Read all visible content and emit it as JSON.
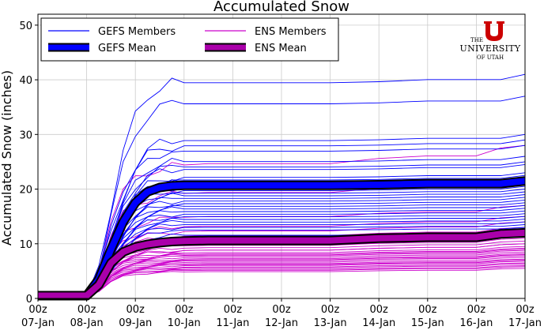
{
  "chart_data": {
    "type": "line",
    "title": "Accumulated Snow",
    "xlabel": "",
    "ylabel": "Accumulated Snow (inches)",
    "ylim": [
      0,
      52
    ],
    "yticks": [
      0,
      10,
      20,
      30,
      40,
      50
    ],
    "xlim": [
      0,
      240
    ],
    "xticks": [
      {
        "h": 0,
        "top": "00z",
        "bottom": "07-Jan"
      },
      {
        "h": 24,
        "top": "00z",
        "bottom": "08-Jan"
      },
      {
        "h": 48,
        "top": "00z",
        "bottom": "09-Jan"
      },
      {
        "h": 72,
        "top": "00z",
        "bottom": "10-Jan"
      },
      {
        "h": 96,
        "top": "00z",
        "bottom": "11-Jan"
      },
      {
        "h": 120,
        "top": "00z",
        "bottom": "12-Jan"
      },
      {
        "h": 144,
        "top": "00z",
        "bottom": "13-Jan"
      },
      {
        "h": 168,
        "top": "00z",
        "bottom": "14-Jan"
      },
      {
        "h": 192,
        "top": "00z",
        "bottom": "15-Jan"
      },
      {
        "h": 216,
        "top": "00z",
        "bottom": "16-Jan"
      },
      {
        "h": 240,
        "top": "00z",
        "bottom": "17-Jan"
      }
    ],
    "grid": true,
    "legend": {
      "placement": "top-left",
      "entries": [
        {
          "label": "GEFS Members",
          "color": "#0000ff",
          "style": "thin"
        },
        {
          "label": "ENS Members",
          "color": "#cc00cc",
          "style": "thin"
        },
        {
          "label": "GEFS Mean",
          "color": "#0000ff",
          "style": "thick"
        },
        {
          "label": "ENS Mean",
          "color": "#aa00aa",
          "style": "thick"
        }
      ]
    },
    "colors": {
      "gefs": "#0000ff",
      "ens": "#cc00cc",
      "ens_mean": "#aa00aa",
      "outline": "#000000"
    },
    "x": [
      0,
      24,
      30,
      36,
      42,
      48,
      54,
      60,
      66,
      72,
      84,
      96,
      120,
      144,
      168,
      180,
      192,
      216,
      228,
      240
    ],
    "series": [
      {
        "name": "GEFS Mean",
        "values": [
          0.5,
          0.5,
          3.5,
          9,
          14,
          17.5,
          19.5,
          20.3,
          20.6,
          20.7,
          20.7,
          20.7,
          20.7,
          20.7,
          20.8,
          20.9,
          21.0,
          21.0,
          21.0,
          21.5
        ]
      },
      {
        "name": "ENS Mean",
        "values": [
          0.5,
          0.5,
          2.5,
          6.5,
          8.5,
          9.4,
          9.9,
          10.2,
          10.4,
          10.5,
          10.6,
          10.6,
          10.6,
          10.6,
          11.0,
          11.1,
          11.2,
          11.2,
          11.8,
          12.0
        ]
      }
    ],
    "gefs_member_finals": [
      41,
      37,
      30,
      29,
      28,
      26,
      25,
      24.5,
      23,
      22.5,
      22,
      21.5,
      21,
      20.5,
      20,
      19.5,
      19,
      18.5,
      18,
      17.5,
      17,
      16.5,
      16,
      15.5,
      15,
      14.5,
      14,
      13.5,
      13,
      12
    ],
    "ens_member_finals": [
      28,
      22,
      17,
      15,
      14,
      13,
      12.5,
      12,
      11.5,
      11,
      10.5,
      10,
      10,
      9.5,
      9.2,
      9,
      8.8,
      8.5,
      8.2,
      8,
      7.8,
      7.5,
      7.2,
      7,
      6.8,
      6.5,
      6.3,
      6,
      5.8,
      5.5
    ],
    "branding": {
      "line1": "THE",
      "line2": "UNIVERSITY",
      "line3": "OF UTAH",
      "color": "#cc0000"
    }
  }
}
